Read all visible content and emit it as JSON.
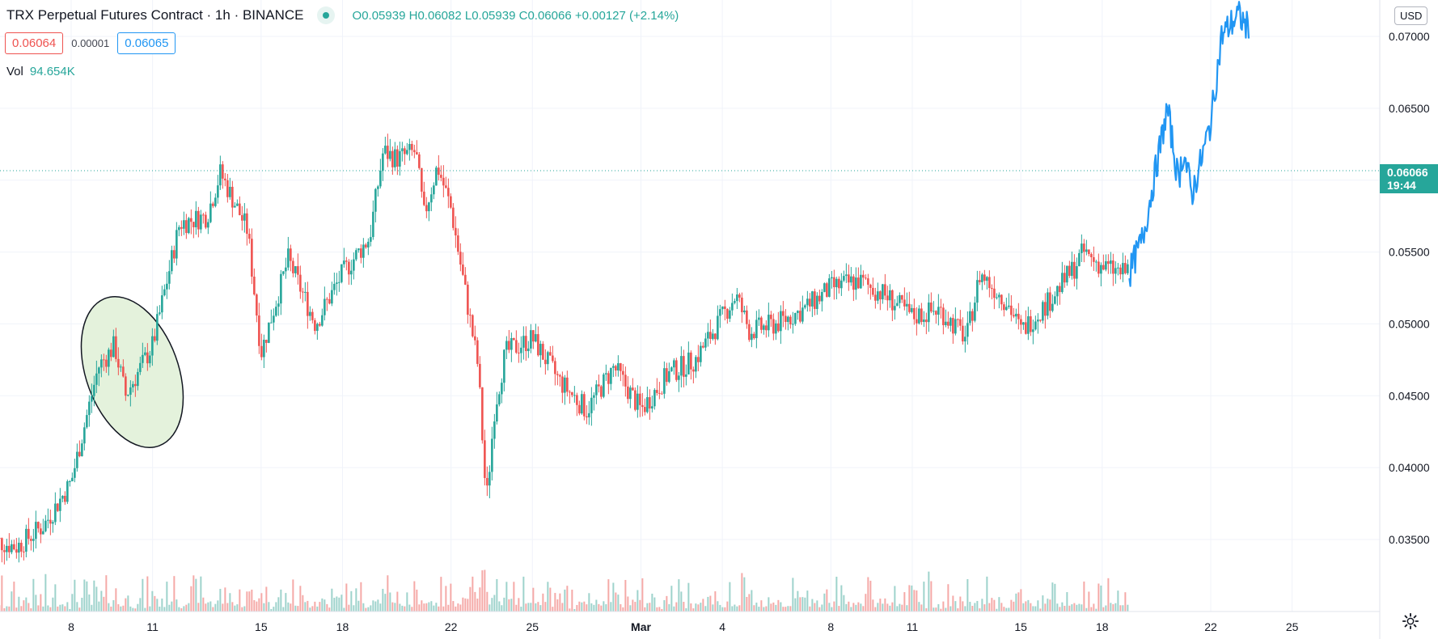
{
  "header": {
    "title": "TRX Perpetual Futures Contract · 1h · BINANCE",
    "ohlc": {
      "open_label": "O",
      "open": "0.05939",
      "high_label": "H",
      "high": "0.06082",
      "low_label": "L",
      "low": "0.05939",
      "close_label": "C",
      "close": "0.06066",
      "change": "+0.00127 (+2.14%)"
    },
    "sell_price": "0.06064",
    "spread": "0.00001",
    "buy_price": "0.06065",
    "volume_label": "Vol",
    "volume_value": "94.654K",
    "currency": "USD"
  },
  "last_price": {
    "value": "0.06066",
    "countdown": "19:44",
    "color": "#26a69a"
  },
  "colors": {
    "up": "#26a69a",
    "down": "#ef5350",
    "projection": "#2196f3",
    "ellipse_fill": "#e4f2dc"
  },
  "icons": {
    "settings": "gear-icon"
  },
  "chart_data": {
    "type": "candlestick",
    "price_axis": {
      "ticks": [
        "0.07000",
        "0.06500",
        "0.06000",
        "0.05500",
        "0.05000",
        "0.04500",
        "0.04000",
        "0.03500"
      ],
      "range": [
        0.0315,
        0.0715
      ]
    },
    "time_axis": {
      "ticks": [
        "8",
        "11",
        "15",
        "18",
        "22",
        "25",
        "Mar",
        "4",
        "8",
        "11",
        "15",
        "18",
        "22",
        "25"
      ]
    },
    "price_path": [
      {
        "t": "Feb 5",
        "p": 0.035
      },
      {
        "t": "Feb 6",
        "p": 0.0345
      },
      {
        "t": "Feb 7",
        "p": 0.036
      },
      {
        "t": "Feb 8",
        "p": 0.039
      },
      {
        "t": "Feb 9",
        "p": 0.047
      },
      {
        "t": "Feb 9.6",
        "p": 0.0485
      },
      {
        "t": "Feb 10",
        "p": 0.045
      },
      {
        "t": "Feb 11",
        "p": 0.0485
      },
      {
        "t": "Feb 12",
        "p": 0.057
      },
      {
        "t": "Feb 13",
        "p": 0.0575
      },
      {
        "t": "Feb 13.5",
        "p": 0.0605
      },
      {
        "t": "Feb 14.5",
        "p": 0.0565
      },
      {
        "t": "Feb 15",
        "p": 0.048
      },
      {
        "t": "Feb 16",
        "p": 0.0545
      },
      {
        "t": "Feb 17",
        "p": 0.05
      },
      {
        "t": "Feb 18",
        "p": 0.0535
      },
      {
        "t": "Feb 19",
        "p": 0.056
      },
      {
        "t": "Feb 19.5",
        "p": 0.062
      },
      {
        "t": "Feb 20",
        "p": 0.0615
      },
      {
        "t": "Feb 20.7",
        "p": 0.062
      },
      {
        "t": "Feb 21",
        "p": 0.0575
      },
      {
        "t": "Feb 21.5",
        "p": 0.061
      },
      {
        "t": "Feb 22",
        "p": 0.058
      },
      {
        "t": "Feb 22.5",
        "p": 0.0525
      },
      {
        "t": "Feb 23",
        "p": 0.047
      },
      {
        "t": "Feb 23.3",
        "p": 0.0375
      },
      {
        "t": "Feb 23.6",
        "p": 0.044
      },
      {
        "t": "Feb 24",
        "p": 0.048
      },
      {
        "t": "Feb 25",
        "p": 0.049
      },
      {
        "t": "Feb 26",
        "p": 0.046
      },
      {
        "t": "Feb 27",
        "p": 0.044
      },
      {
        "t": "Feb 28",
        "p": 0.047
      },
      {
        "t": "Mar 1",
        "p": 0.044
      },
      {
        "t": "Mar 2",
        "p": 0.0465
      },
      {
        "t": "Mar 3",
        "p": 0.0475
      },
      {
        "t": "Mar 4",
        "p": 0.0505
      },
      {
        "t": "Mar 4.5",
        "p": 0.052
      },
      {
        "t": "Mar 5",
        "p": 0.0495
      },
      {
        "t": "Mar 6",
        "p": 0.05
      },
      {
        "t": "Mar 7",
        "p": 0.051
      },
      {
        "t": "Mar 8",
        "p": 0.0525
      },
      {
        "t": "Mar 9",
        "p": 0.053
      },
      {
        "t": "Mar 10",
        "p": 0.052
      },
      {
        "t": "Mar 11",
        "p": 0.0505
      },
      {
        "t": "Mar 12",
        "p": 0.051
      },
      {
        "t": "Mar 13",
        "p": 0.049
      },
      {
        "t": "Mar 13.5",
        "p": 0.0535
      },
      {
        "t": "Mar 14.5",
        "p": 0.0515
      },
      {
        "t": "Mar 15",
        "p": 0.0495
      },
      {
        "t": "Mar 16",
        "p": 0.0515
      },
      {
        "t": "Mar 17",
        "p": 0.054
      },
      {
        "t": "Mar 17.3",
        "p": 0.055
      },
      {
        "t": "Mar 18",
        "p": 0.054
      },
      {
        "t": "Mar 18.8",
        "p": 0.0535
      },
      {
        "t": "Mar 19",
        "p": 0.054
      }
    ],
    "projection_path": [
      {
        "t": "Mar 19",
        "p": 0.0535
      },
      {
        "t": "Mar 19.5",
        "p": 0.056
      },
      {
        "t": "Mar 20",
        "p": 0.061
      },
      {
        "t": "Mar 20.4",
        "p": 0.065
      },
      {
        "t": "Mar 20.8",
        "p": 0.06
      },
      {
        "t": "Mar 21",
        "p": 0.062
      },
      {
        "t": "Mar 21.3",
        "p": 0.059
      },
      {
        "t": "Mar 21.6",
        "p": 0.061
      },
      {
        "t": "Mar 22",
        "p": 0.064
      },
      {
        "t": "Mar 22.4",
        "p": 0.07
      },
      {
        "t": "Mar 23",
        "p": 0.0715
      },
      {
        "t": "Mar 23.4",
        "p": 0.0705
      }
    ],
    "last_price": 0.06066,
    "annotations": [
      {
        "type": "ellipse",
        "around": "Feb 9 – Feb 11",
        "fill": "#e4f2dc"
      }
    ]
  }
}
